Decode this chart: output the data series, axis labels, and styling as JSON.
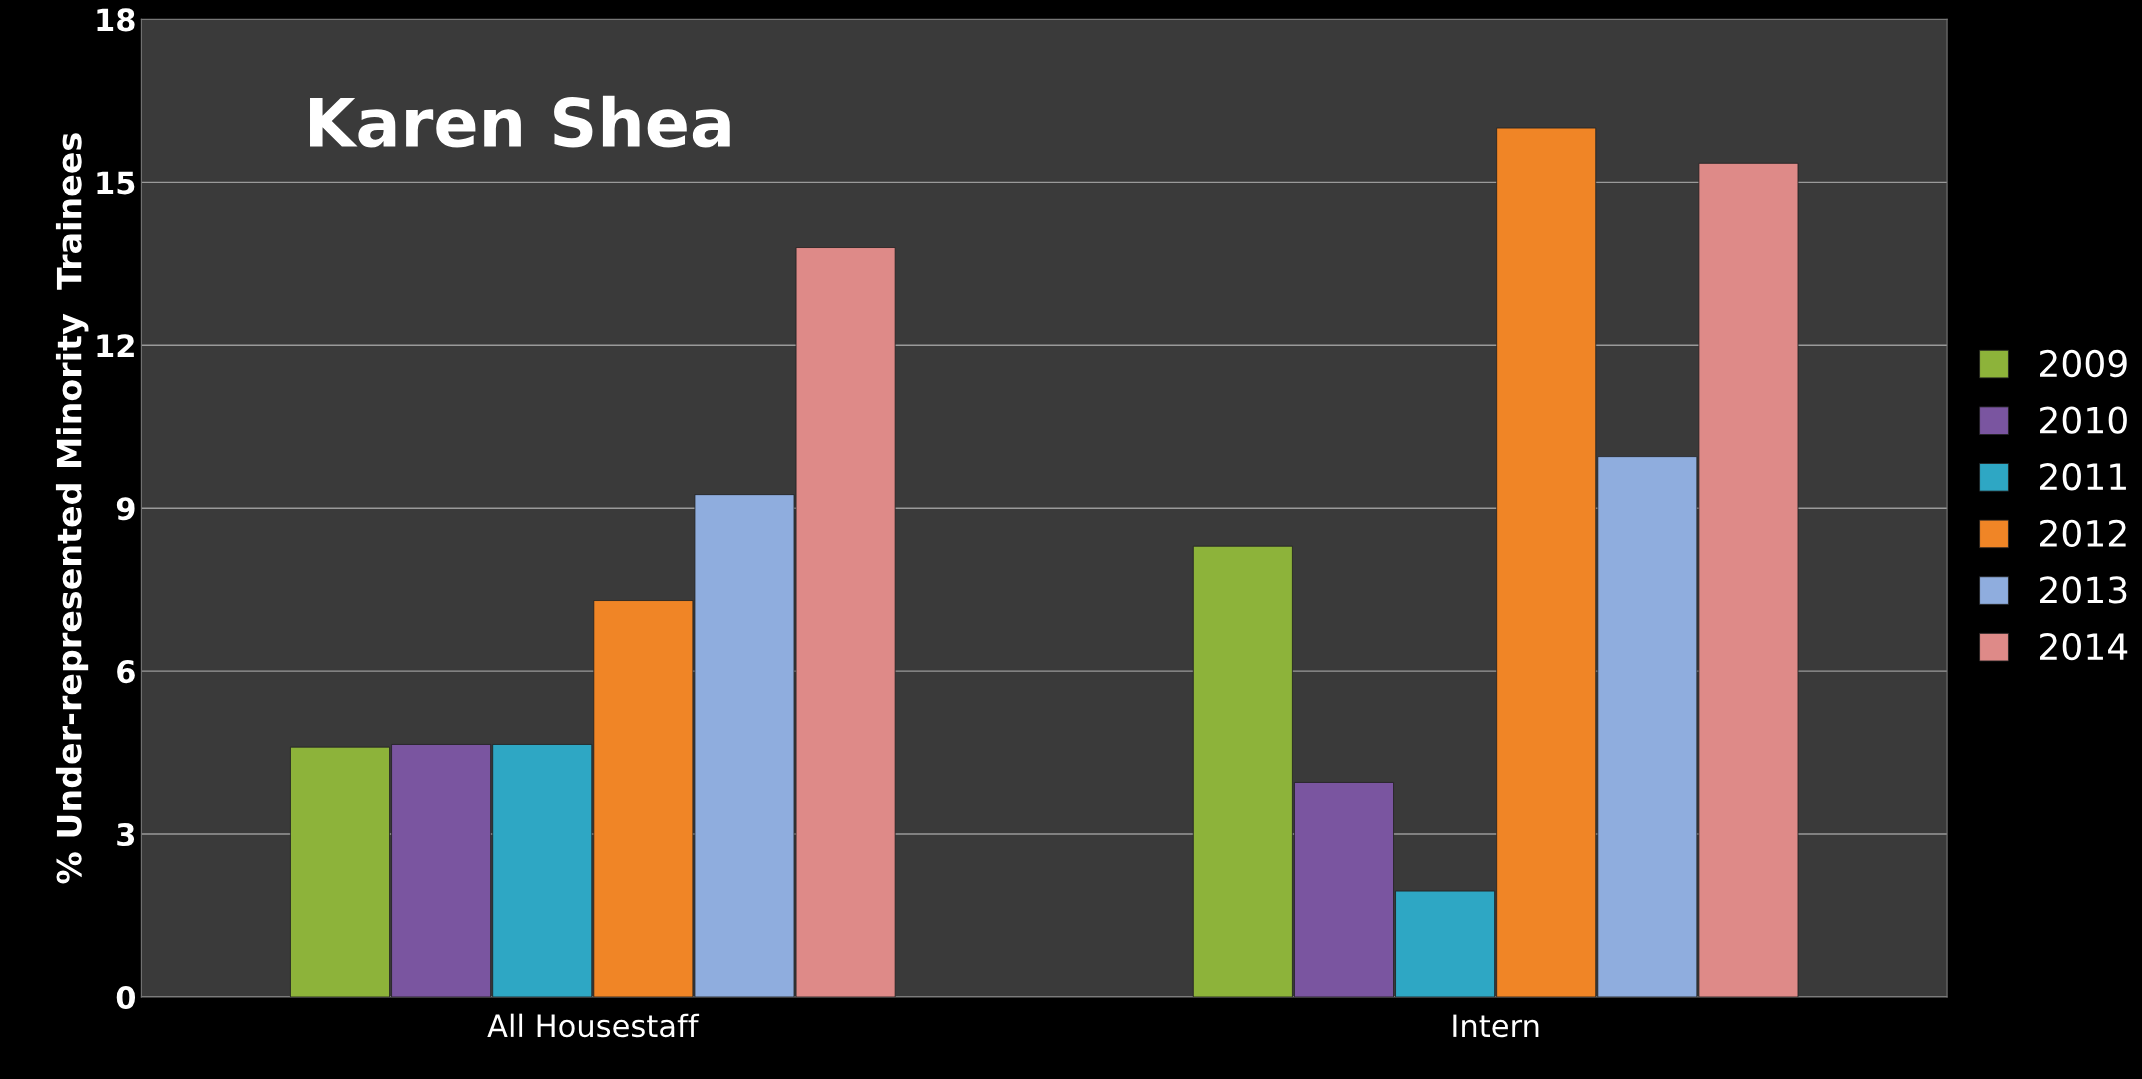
{
  "chart_data": {
    "type": "bar",
    "ylabel": "% Under-represented Minority  Trainees",
    "categories": [
      "All Housestaff",
      "Intern"
    ],
    "series": [
      {
        "name": "2009",
        "color": "#8db33a",
        "values": [
          4.6,
          8.3
        ]
      },
      {
        "name": "2010",
        "color": "#7a55a0",
        "values": [
          4.65,
          3.95
        ]
      },
      {
        "name": "2011",
        "color": "#2ea7c4",
        "values": [
          4.65,
          1.95
        ]
      },
      {
        "name": "2012",
        "color": "#f08526",
        "values": [
          7.3,
          16.0
        ]
      },
      {
        "name": "2013",
        "color": "#8fadde",
        "values": [
          9.25,
          9.95
        ]
      },
      {
        "name": "2014",
        "color": "#de8a88",
        "values": [
          13.8,
          15.35
        ]
      }
    ],
    "annotations": [
      "Karen Shea"
    ],
    "ylim": [
      0,
      18
    ],
    "yticks": [
      0,
      3,
      6,
      9,
      12,
      15,
      18
    ],
    "grid": "y",
    "legend": "right"
  }
}
